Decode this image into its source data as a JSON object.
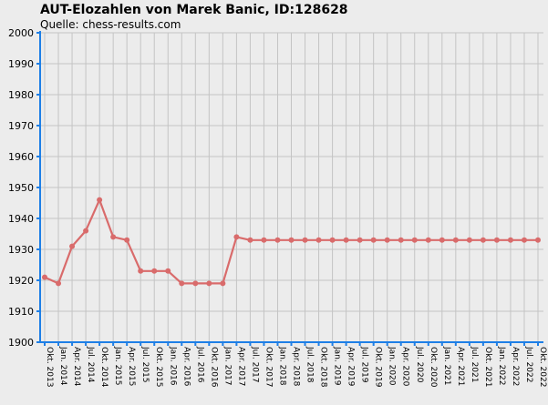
{
  "chart_data": {
    "type": "line",
    "title": "AUT-Elozahlen von Marek Banic, ID:128628",
    "subtitle": "Quelle: chess-results.com",
    "xlabel": "",
    "ylabel": "",
    "ylim": [
      1900,
      2000
    ],
    "yticks": [
      1900,
      1910,
      1920,
      1930,
      1940,
      1950,
      1960,
      1970,
      1980,
      1990,
      2000
    ],
    "grid": true,
    "line_color": "#d96b6b",
    "axis_color": "#1e7fe6",
    "categories": [
      "Okt. 2013",
      "Jan. 2014",
      "Apr. 2014",
      "Jul. 2014",
      "Okt. 2014",
      "Jan. 2015",
      "Apr. 2015",
      "Jul. 2015",
      "Okt. 2015",
      "Jan. 2016",
      "Apr. 2016",
      "Jul. 2016",
      "Okt. 2016",
      "Jan. 2017",
      "Apr. 2017",
      "Jul. 2017",
      "Okt. 2017",
      "Jan. 2018",
      "Apr. 2018",
      "Jul. 2018",
      "Okt. 2018",
      "Jan. 2019",
      "Apr. 2019",
      "Jul. 2019",
      "Okt. 2019",
      "Jan. 2020",
      "Apr. 2020",
      "Jul. 2020",
      "Okt. 2020",
      "Jan. 2021",
      "Apr. 2021",
      "Jul. 2021",
      "Okt. 2021",
      "Jan. 2022",
      "Apr. 2022",
      "Jul. 2022",
      "Okt. 2022"
    ],
    "values": [
      1921,
      1919,
      1931,
      1936,
      1946,
      1934,
      1933,
      1923,
      1923,
      1923,
      1919,
      1919,
      1919,
      1919,
      1934,
      1933,
      1933,
      1933,
      1933,
      1933,
      1933,
      1933,
      1933,
      1933,
      1933,
      1933,
      1933,
      1933,
      1933,
      1933,
      1933,
      1933,
      1933,
      1933,
      1933,
      1933,
      1933
    ]
  }
}
